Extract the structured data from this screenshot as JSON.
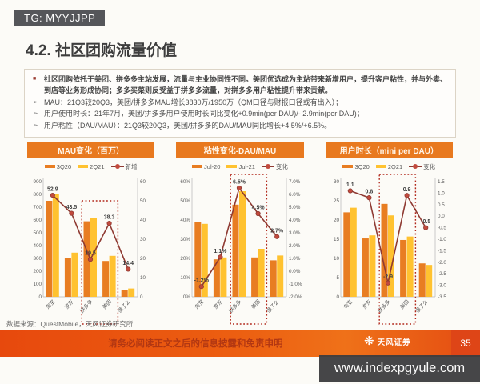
{
  "overlay": {
    "tg_label": "TG: MYYJJPP",
    "watermark": "www.indexpgyule.com"
  },
  "markers": {
    "square": "■",
    "arrow": "➢",
    "logo_glyph": "❋"
  },
  "slide": {
    "section_title": "4.2. 社区团购流量价值",
    "bullets": {
      "main": "社区团购依托于美团、拼多多主站发展，流量与主业协同性不同。美团优选成为主站带来新增用户，提升客户粘性，并与外卖、到店等业务形成协同；多多买菜则反受益于拼多多流量，对拼多多用户粘性提升带来贡献。",
      "sub": [
        "MAU：21Q3较20Q3，美团/拼多多MAU增长3830万/1950万（QM口径与财报口径或有出入）；",
        "用户使用时长：21年7月，美团/拼多多用户使用时长同比变化+0.9min(per DAU)/- 2.9min(per DAU)；",
        "用户粘性（DAU/MAU）：21Q3较20Q3，美团/拼多多的DAU/MAU同比增长+4.5%/+6.5%。"
      ]
    },
    "source_note": "数据来源：QuestMobile，天风证券研究所",
    "disclaimer": "请务必阅读正文之后的信息披露和免责申明",
    "brand_name": "天风证券",
    "page_number": "35"
  },
  "colors": {
    "header_bg": "#E8791F",
    "bar_primary": "#E87D22",
    "bar_secondary": "#FFC230",
    "line": "#8F3A32",
    "marker": "#C24A3D",
    "highlight_border": "#B2281C",
    "disclaimer_bg": "#E95110",
    "badge_bg": "#55565A",
    "watermark_bg": "#3C3C3E"
  },
  "chart_data": [
    {
      "type": "bar",
      "title": "MAU变化（百万）",
      "categories": [
        "淘宝",
        "京东",
        "拼多多",
        "美团",
        "饿了么"
      ],
      "series": [
        {
          "name": "3Q20",
          "type": "bar",
          "color": "#E87D22",
          "values": [
            750,
            300,
            590,
            280,
            50
          ]
        },
        {
          "name": "2Q21",
          "type": "bar",
          "color": "#FFC230",
          "values": [
            800,
            345,
            615,
            320,
            65
          ]
        },
        {
          "name": "新增",
          "type": "line",
          "axis": "right",
          "color": "#8F3A32",
          "marker_color": "#C24A3D",
          "values": [
            52.9,
            43.5,
            19.5,
            38.3,
            14.4
          ],
          "labels": [
            "52.9",
            "43.5",
            "19.5",
            "38.3",
            "14.4"
          ]
        }
      ],
      "left_axis": {
        "min": 0,
        "max": 900,
        "step": 100,
        "suffix": "",
        "decimals": 0
      },
      "right_axis": {
        "min": 0,
        "max": 60,
        "step": 10,
        "suffix": "",
        "decimals": 0
      },
      "highlight": {
        "from": 2,
        "to": 3,
        "top": 36
      },
      "grid": false,
      "legend_position": "top"
    },
    {
      "type": "bar",
      "title": "粘性变化-DAU/MAU",
      "categories": [
        "淘宝",
        "京东",
        "拼多多",
        "美团",
        "饿了么"
      ],
      "series": [
        {
          "name": "Jul-20",
          "type": "bar",
          "color": "#E87D22",
          "values": [
            39,
            19.5,
            48,
            20.5,
            19
          ]
        },
        {
          "name": "Jul-21",
          "type": "bar",
          "color": "#FFC230",
          "values": [
            38,
            20.5,
            55,
            25,
            21.5
          ]
        },
        {
          "name": "变化",
          "type": "line",
          "axis": "right",
          "color": "#8F3A32",
          "marker_color": "#C24A3D",
          "values": [
            -1.2,
            1.1,
            6.5,
            4.5,
            2.7
          ],
          "labels": [
            "-1.2%",
            "1.1%",
            "6.5%",
            "4.5%",
            "2.7%"
          ]
        }
      ],
      "left_axis": {
        "min": 0,
        "max": 60,
        "step": 10,
        "suffix": "%",
        "decimals": 0
      },
      "right_axis": {
        "min": -2,
        "max": 7,
        "step": 1,
        "suffix": "%",
        "decimals": 1
      },
      "highlight": {
        "from": 2,
        "to": 3,
        "top": 3
      },
      "grid": false,
      "legend_position": "top"
    },
    {
      "type": "bar",
      "title": "用户时长（mini per DAU）",
      "categories": [
        "淘宝",
        "京东",
        "拼多多",
        "美团",
        "饿了么"
      ],
      "series": [
        {
          "name": "3Q20",
          "type": "bar",
          "color": "#E87D22",
          "values": [
            22,
            15.2,
            24.2,
            14.8,
            8.7
          ]
        },
        {
          "name": "2Q21",
          "type": "bar",
          "color": "#FFC230",
          "values": [
            23.2,
            16,
            21.2,
            15.7,
            8.3
          ]
        },
        {
          "name": "变化",
          "type": "line",
          "axis": "right",
          "color": "#8F3A32",
          "marker_color": "#C24A3D",
          "values": [
            1.1,
            0.8,
            -2.9,
            0.9,
            -0.5
          ],
          "labels": [
            "1.1",
            "0.8",
            "-2.9",
            "0.9",
            "-0.5"
          ]
        }
      ],
      "left_axis": {
        "min": 0,
        "max": 30,
        "step": 5,
        "suffix": "",
        "decimals": 0
      },
      "right_axis": {
        "min": -3.5,
        "max": 1.5,
        "step": 0.5,
        "suffix": "",
        "decimals": 1
      },
      "highlight": {
        "from": 2,
        "to": 3,
        "top": 3
      },
      "grid": false,
      "legend_position": "top"
    }
  ]
}
